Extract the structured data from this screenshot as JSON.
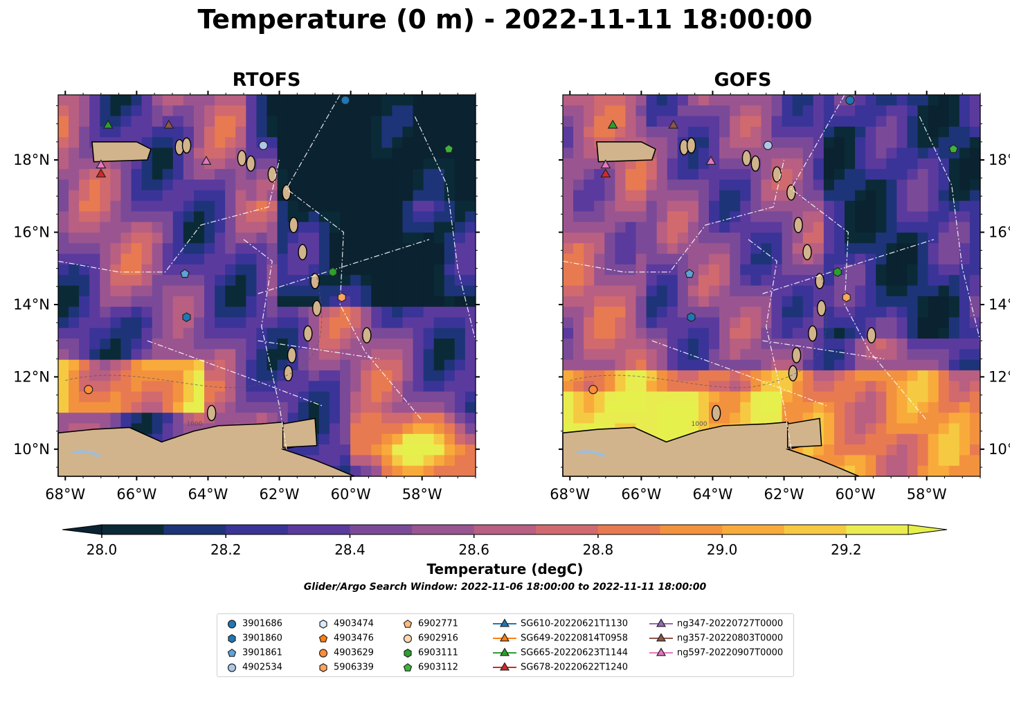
{
  "title": "Temperature (0 m) - 2022-11-11 18:00:00",
  "panels": [
    {
      "title": "RTOFS",
      "model": "RTOFS"
    },
    {
      "title": "GOFS",
      "model": "GOFS"
    }
  ],
  "map_extent": {
    "lon_min": -68.2,
    "lon_max": -56.5,
    "lat_min": 9.25,
    "lat_max": 19.8
  },
  "lon_ticks": [
    {
      "value": -68,
      "label": "68°W"
    },
    {
      "value": -66,
      "label": "66°W"
    },
    {
      "value": -64,
      "label": "64°W"
    },
    {
      "value": -62,
      "label": "62°W"
    },
    {
      "value": -60,
      "label": "60°W"
    },
    {
      "value": -58,
      "label": "58°W"
    }
  ],
  "lat_ticks": [
    {
      "value": 18,
      "label": "18°N"
    },
    {
      "value": 16,
      "label": "16°N"
    },
    {
      "value": 14,
      "label": "14°N"
    },
    {
      "value": 12,
      "label": "12°N"
    },
    {
      "value": 10,
      "label": "10°N"
    }
  ],
  "colorbar": {
    "label": "Temperature (degC)",
    "min": 28.0,
    "max": 29.3,
    "step": 0.1,
    "extend": "both",
    "ticks": [
      "28.0",
      "28.2",
      "28.4",
      "28.6",
      "28.8",
      "29.0",
      "29.2"
    ],
    "colors": [
      "#0b2a37",
      "#1e3479",
      "#3a3498",
      "#5b3a9e",
      "#7a4a98",
      "#9a5590",
      "#b85f82",
      "#d16a6e",
      "#e87a52",
      "#f3923e",
      "#f8ab3b",
      "#f6c942",
      "#e9ec4e"
    ],
    "under_color": "#0b2231",
    "over_color": "#e5f04d"
  },
  "search_window": "Glider/Argo Search Window: 2022-11-06 18:00:00 to 2022-11-11 18:00:00",
  "contour_label": "1000",
  "legend": [
    {
      "label": "3901686",
      "marker": "circle",
      "color": "#1f77b4"
    },
    {
      "label": "3901860",
      "marker": "hexagon",
      "color": "#1f77b4"
    },
    {
      "label": "3901861",
      "marker": "pentagon",
      "color": "#5fa2d8"
    },
    {
      "label": "4902534",
      "marker": "circle",
      "color": "#aec7e8"
    },
    {
      "label": "4903474",
      "marker": "hexagon",
      "color": "#d8ecf8"
    },
    {
      "label": "4903476",
      "marker": "pentagon",
      "color": "#ff7f0e"
    },
    {
      "label": "4903629",
      "marker": "circle",
      "color": "#ff8c3a"
    },
    {
      "label": "5906339",
      "marker": "hexagon",
      "color": "#ffa55c"
    },
    {
      "label": "6902771",
      "marker": "pentagon",
      "color": "#ffbb78"
    },
    {
      "label": "6902916",
      "marker": "circle",
      "color": "#ffd8b0"
    },
    {
      "label": "6903111",
      "marker": "hexagon",
      "color": "#2ca02c"
    },
    {
      "label": "6903112",
      "marker": "pentagon",
      "color": "#3cb43c"
    },
    {
      "label": "SG610-20220621T1130",
      "marker": "triangle",
      "color": "#1f77b4",
      "line": true
    },
    {
      "label": "SG649-20220814T0958",
      "marker": "triangle",
      "color": "#ff7f0e",
      "line": true
    },
    {
      "label": "SG665-20220623T1144",
      "marker": "triangle",
      "color": "#2ca02c",
      "line": true
    },
    {
      "label": "SG678-20220622T1240",
      "marker": "triangle",
      "color": "#d62728",
      "line": true
    },
    {
      "label": "ng347-20220727T0000",
      "marker": "triangle",
      "color": "#9467bd",
      "line": true
    },
    {
      "label": "ng357-20220803T0000",
      "marker": "triangle",
      "color": "#8c564b",
      "line": true
    },
    {
      "label": "ng597-20220907T0000",
      "marker": "triangle",
      "color": "#e377c2",
      "line": true
    }
  ],
  "observations": [
    {
      "id": "3901686",
      "lon": -60.15,
      "lat": 19.65
    },
    {
      "id": "3901860",
      "lon": -64.6,
      "lat": 13.65
    },
    {
      "id": "3901861",
      "lon": -64.65,
      "lat": 14.85
    },
    {
      "id": "4902534",
      "lon": -62.45,
      "lat": 18.4
    },
    {
      "id": "4903629",
      "lon": -67.35,
      "lat": 11.65
    },
    {
      "id": "5906339",
      "lon": -60.25,
      "lat": 14.2
    },
    {
      "id": "6903111",
      "lon": -60.5,
      "lat": 14.9
    },
    {
      "id": "6903112",
      "lon": -57.25,
      "lat": 18.3
    },
    {
      "id": "SG665-20220623T1144",
      "lon": -66.8,
      "lat": 18.95
    },
    {
      "id": "ng357-20220803T0000",
      "lon": -65.1,
      "lat": 18.95
    },
    {
      "id": "ng597-20220907T0000",
      "lon": -64.05,
      "lat": 17.95
    },
    {
      "id": "ng597-20220907T0000",
      "lon": -67.0,
      "lat": 17.85
    },
    {
      "id": "SG678-20220622T1240",
      "lon": -67.0,
      "lat": 17.6
    }
  ]
}
